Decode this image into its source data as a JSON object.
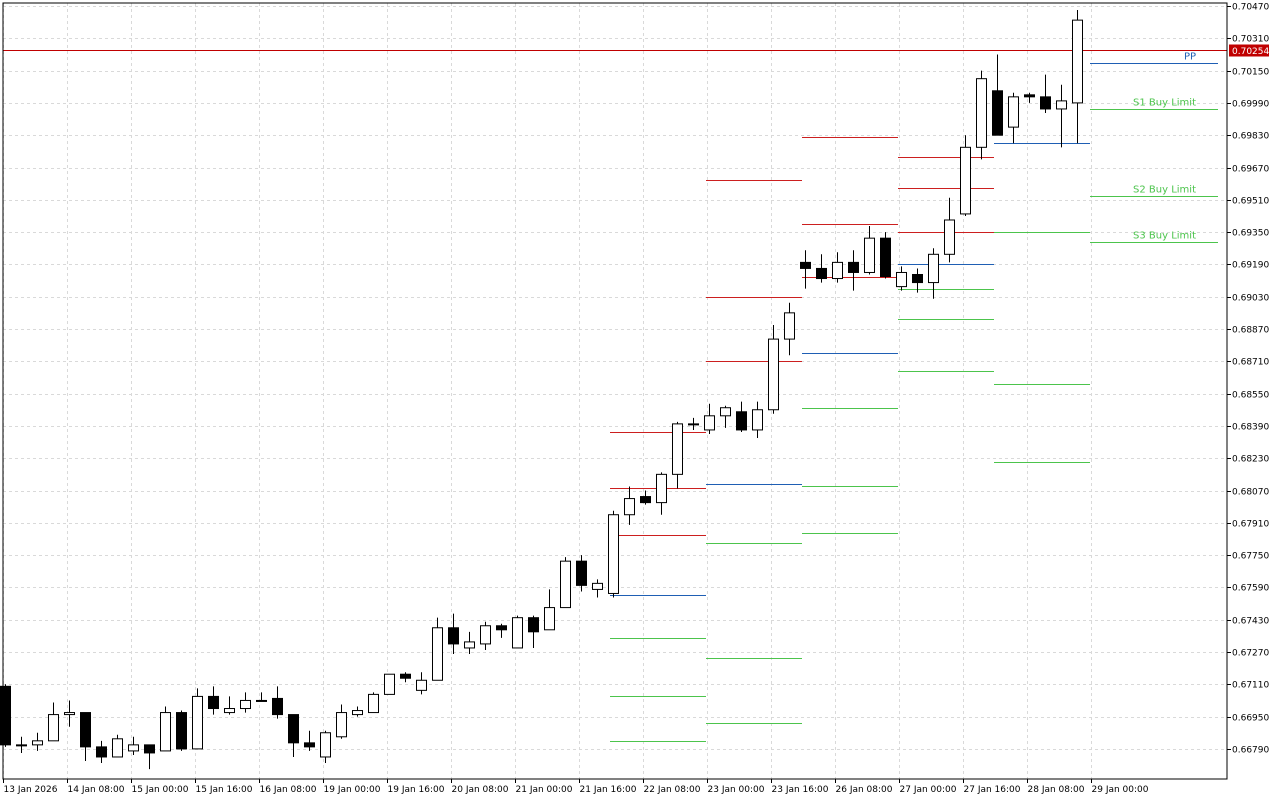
{
  "chart_data": {
    "type": "candlestick",
    "grid": true,
    "ylim": [
      0.6668,
      0.7047
    ],
    "current_price": {
      "value": 0.70254,
      "label": "0.70254",
      "color": "#c00000"
    },
    "y_ticks": [
      {
        "value": 0.7047,
        "label": "0.70470"
      },
      {
        "value": 0.7031,
        "label": "0.70310"
      },
      {
        "value": 0.7015,
        "label": "0.70150"
      },
      {
        "value": 0.6999,
        "label": "0.69990"
      },
      {
        "value": 0.6983,
        "label": "0.69830"
      },
      {
        "value": 0.6967,
        "label": "0.69670"
      },
      {
        "value": 0.6951,
        "label": "0.69510"
      },
      {
        "value": 0.6935,
        "label": "0.69350"
      },
      {
        "value": 0.6919,
        "label": "0.69190"
      },
      {
        "value": 0.6903,
        "label": "0.69030"
      },
      {
        "value": 0.6887,
        "label": "0.68870"
      },
      {
        "value": 0.6871,
        "label": "0.68710"
      },
      {
        "value": 0.6855,
        "label": "0.68550"
      },
      {
        "value": 0.6839,
        "label": "0.68390"
      },
      {
        "value": 0.6823,
        "label": "0.68230"
      },
      {
        "value": 0.6807,
        "label": "0.68070"
      },
      {
        "value": 0.6791,
        "label": "0.67910"
      },
      {
        "value": 0.6775,
        "label": "0.67750"
      },
      {
        "value": 0.6759,
        "label": "0.67590"
      },
      {
        "value": 0.6743,
        "label": "0.67430"
      },
      {
        "value": 0.6727,
        "label": "0.67270"
      },
      {
        "value": 0.6711,
        "label": "0.67110"
      },
      {
        "value": 0.6695,
        "label": "0.66950"
      },
      {
        "value": 0.6679,
        "label": "0.66790"
      }
    ],
    "x_ticks": [
      {
        "index": 0,
        "label": "13 Jan 2026"
      },
      {
        "index": 4,
        "label": "14 Jan 08:00"
      },
      {
        "index": 8,
        "label": "15 Jan 00:00"
      },
      {
        "index": 12,
        "label": "15 Jan 16:00"
      },
      {
        "index": 16,
        "label": "16 Jan 08:00"
      },
      {
        "index": 20,
        "label": "19 Jan 00:00"
      },
      {
        "index": 24,
        "label": "19 Jan 16:00"
      },
      {
        "index": 28,
        "label": "20 Jan 08:00"
      },
      {
        "index": 32,
        "label": "21 Jan 00:00"
      },
      {
        "index": 36,
        "label": "21 Jan 16:00"
      },
      {
        "index": 40,
        "label": "22 Jan 08:00"
      },
      {
        "index": 44,
        "label": "23 Jan 00:00"
      },
      {
        "index": 48,
        "label": "23 Jan 16:00"
      },
      {
        "index": 52,
        "label": "26 Jan 08:00"
      },
      {
        "index": 56,
        "label": "27 Jan 00:00"
      },
      {
        "index": 60,
        "label": "27 Jan 16:00"
      },
      {
        "index": 64,
        "label": "28 Jan 08:00"
      },
      {
        "index": 68,
        "label": "29 Jan 00:00"
      }
    ],
    "candles": [
      {
        "i": 0,
        "o": 0.671,
        "h": 0.6711,
        "l": 0.668,
        "c": 0.6681
      },
      {
        "i": 1,
        "o": 0.6681,
        "h": 0.6685,
        "l": 0.6677,
        "c": 0.6681
      },
      {
        "i": 2,
        "o": 0.6681,
        "h": 0.6687,
        "l": 0.6678,
        "c": 0.6683
      },
      {
        "i": 3,
        "o": 0.6683,
        "h": 0.6702,
        "l": 0.6683,
        "c": 0.6696
      },
      {
        "i": 4,
        "o": 0.6696,
        "h": 0.6703,
        "l": 0.669,
        "c": 0.6697
      },
      {
        "i": 5,
        "o": 0.6697,
        "h": 0.6697,
        "l": 0.6673,
        "c": 0.668
      },
      {
        "i": 6,
        "o": 0.668,
        "h": 0.6683,
        "l": 0.6672,
        "c": 0.6675
      },
      {
        "i": 7,
        "o": 0.6675,
        "h": 0.6686,
        "l": 0.6675,
        "c": 0.6684
      },
      {
        "i": 8,
        "o": 0.6678,
        "h": 0.6685,
        "l": 0.6676,
        "c": 0.6681
      },
      {
        "i": 9,
        "o": 0.6681,
        "h": 0.6681,
        "l": 0.6669,
        "c": 0.6677
      },
      {
        "i": 10,
        "o": 0.6678,
        "h": 0.67,
        "l": 0.6678,
        "c": 0.6697
      },
      {
        "i": 11,
        "o": 0.6697,
        "h": 0.6698,
        "l": 0.6678,
        "c": 0.6679
      },
      {
        "i": 12,
        "o": 0.6679,
        "h": 0.6709,
        "l": 0.6679,
        "c": 0.6705
      },
      {
        "i": 13,
        "o": 0.6705,
        "h": 0.671,
        "l": 0.6696,
        "c": 0.6699
      },
      {
        "i": 14,
        "o": 0.6697,
        "h": 0.6705,
        "l": 0.6696,
        "c": 0.6699
      },
      {
        "i": 15,
        "o": 0.6699,
        "h": 0.6707,
        "l": 0.6697,
        "c": 0.6703
      },
      {
        "i": 16,
        "o": 0.6703,
        "h": 0.6707,
        "l": 0.6703,
        "c": 0.6703
      },
      {
        "i": 17,
        "o": 0.6704,
        "h": 0.671,
        "l": 0.6694,
        "c": 0.6696
      },
      {
        "i": 18,
        "o": 0.6696,
        "h": 0.6696,
        "l": 0.6675,
        "c": 0.6682
      },
      {
        "i": 19,
        "o": 0.6682,
        "h": 0.6688,
        "l": 0.6678,
        "c": 0.668
      },
      {
        "i": 20,
        "o": 0.6675,
        "h": 0.6688,
        "l": 0.6672,
        "c": 0.6687
      },
      {
        "i": 21,
        "o": 0.6685,
        "h": 0.6701,
        "l": 0.6684,
        "c": 0.6697
      },
      {
        "i": 22,
        "o": 0.6696,
        "h": 0.67,
        "l": 0.6695,
        "c": 0.6698
      },
      {
        "i": 23,
        "o": 0.6697,
        "h": 0.6707,
        "l": 0.6697,
        "c": 0.6706
      },
      {
        "i": 24,
        "o": 0.6706,
        "h": 0.6716,
        "l": 0.6706,
        "c": 0.6716
      },
      {
        "i": 25,
        "o": 0.6716,
        "h": 0.6717,
        "l": 0.6712,
        "c": 0.6714
      },
      {
        "i": 26,
        "o": 0.6708,
        "h": 0.6717,
        "l": 0.6706,
        "c": 0.6713
      },
      {
        "i": 27,
        "o": 0.6713,
        "h": 0.6744,
        "l": 0.6713,
        "c": 0.6739
      },
      {
        "i": 28,
        "o": 0.6739,
        "h": 0.6746,
        "l": 0.6726,
        "c": 0.6731
      },
      {
        "i": 29,
        "o": 0.6729,
        "h": 0.6737,
        "l": 0.6726,
        "c": 0.6732
      },
      {
        "i": 30,
        "o": 0.6731,
        "h": 0.6742,
        "l": 0.6728,
        "c": 0.674
      },
      {
        "i": 31,
        "o": 0.674,
        "h": 0.6741,
        "l": 0.6734,
        "c": 0.6738
      },
      {
        "i": 32,
        "o": 0.6729,
        "h": 0.6745,
        "l": 0.6729,
        "c": 0.6744
      },
      {
        "i": 33,
        "o": 0.6744,
        "h": 0.6745,
        "l": 0.6729,
        "c": 0.6737
      },
      {
        "i": 34,
        "o": 0.6738,
        "h": 0.6758,
        "l": 0.6738,
        "c": 0.6749
      },
      {
        "i": 35,
        "o": 0.6749,
        "h": 0.6774,
        "l": 0.6749,
        "c": 0.6772
      },
      {
        "i": 36,
        "o": 0.6772,
        "h": 0.6775,
        "l": 0.6757,
        "c": 0.676
      },
      {
        "i": 37,
        "o": 0.6758,
        "h": 0.6763,
        "l": 0.6754,
        "c": 0.6761
      },
      {
        "i": 38,
        "o": 0.6756,
        "h": 0.6797,
        "l": 0.6754,
        "c": 0.6795
      },
      {
        "i": 39,
        "o": 0.6795,
        "h": 0.6809,
        "l": 0.679,
        "c": 0.6803
      },
      {
        "i": 40,
        "o": 0.6804,
        "h": 0.6807,
        "l": 0.68,
        "c": 0.6801
      },
      {
        "i": 41,
        "o": 0.6801,
        "h": 0.6816,
        "l": 0.6795,
        "c": 0.6815
      },
      {
        "i": 42,
        "o": 0.6815,
        "h": 0.6841,
        "l": 0.6808,
        "c": 0.684
      },
      {
        "i": 43,
        "o": 0.684,
        "h": 0.6843,
        "l": 0.6837,
        "c": 0.684
      },
      {
        "i": 44,
        "o": 0.6837,
        "h": 0.685,
        "l": 0.6835,
        "c": 0.6844
      },
      {
        "i": 45,
        "o": 0.6844,
        "h": 0.6849,
        "l": 0.6838,
        "c": 0.6848
      },
      {
        "i": 46,
        "o": 0.6846,
        "h": 0.6851,
        "l": 0.6836,
        "c": 0.6837
      },
      {
        "i": 47,
        "o": 0.6837,
        "h": 0.6851,
        "l": 0.6833,
        "c": 0.6847
      },
      {
        "i": 48,
        "o": 0.6847,
        "h": 0.6889,
        "l": 0.6845,
        "c": 0.6882
      },
      {
        "i": 49,
        "o": 0.6882,
        "h": 0.69,
        "l": 0.6874,
        "c": 0.6895
      },
      {
        "i": 50,
        "o": 0.692,
        "h": 0.6926,
        "l": 0.6907,
        "c": 0.6917
      },
      {
        "i": 51,
        "o": 0.6917,
        "h": 0.6924,
        "l": 0.691,
        "c": 0.6912
      },
      {
        "i": 52,
        "o": 0.6912,
        "h": 0.6925,
        "l": 0.691,
        "c": 0.692
      },
      {
        "i": 53,
        "o": 0.692,
        "h": 0.6926,
        "l": 0.6906,
        "c": 0.6915
      },
      {
        "i": 54,
        "o": 0.6915,
        "h": 0.6938,
        "l": 0.6914,
        "c": 0.6932
      },
      {
        "i": 55,
        "o": 0.6932,
        "h": 0.6935,
        "l": 0.6912,
        "c": 0.6913
      },
      {
        "i": 56,
        "o": 0.6908,
        "h": 0.6918,
        "l": 0.6906,
        "c": 0.6915
      },
      {
        "i": 57,
        "o": 0.6914,
        "h": 0.6917,
        "l": 0.6905,
        "c": 0.691
      },
      {
        "i": 58,
        "o": 0.691,
        "h": 0.6927,
        "l": 0.6902,
        "c": 0.6924
      },
      {
        "i": 59,
        "o": 0.6924,
        "h": 0.6952,
        "l": 0.692,
        "c": 0.6941
      },
      {
        "i": 60,
        "o": 0.6944,
        "h": 0.6983,
        "l": 0.6943,
        "c": 0.6977
      },
      {
        "i": 61,
        "o": 0.6977,
        "h": 0.7015,
        "l": 0.6971,
        "c": 0.7011
      },
      {
        "i": 62,
        "o": 0.7005,
        "h": 0.7023,
        "l": 0.6985,
        "c": 0.6983
      },
      {
        "i": 63,
        "o": 0.6987,
        "h": 0.7004,
        "l": 0.6979,
        "c": 0.7002
      },
      {
        "i": 64,
        "o": 0.7003,
        "h": 0.7004,
        "l": 0.6999,
        "c": 0.7002
      },
      {
        "i": 65,
        "o": 0.7002,
        "h": 0.7013,
        "l": 0.6994,
        "c": 0.6996
      },
      {
        "i": 66,
        "o": 0.6996,
        "h": 0.7008,
        "l": 0.6977,
        "c": 0.7
      },
      {
        "i": 67,
        "o": 0.6999,
        "h": 0.7045,
        "l": 0.6979,
        "c": 0.704
      }
    ],
    "pivot_segments": [
      {
        "start": 38,
        "end": 43,
        "r": [
          0.6836,
          0.6808,
          0.6785
        ],
        "p": 0.6755,
        "s": [
          0.6734,
          0.6705,
          0.6683
        ]
      },
      {
        "start": 44,
        "end": 49,
        "r": [
          0.6961,
          0.6903,
          0.6871
        ],
        "p": 0.681,
        "s": [
          0.6781,
          0.6724,
          0.6692
        ]
      },
      {
        "start": 50,
        "end": 55,
        "r": [
          0.6982,
          0.6939,
          0.6913
        ],
        "p": 0.6875,
        "s": [
          0.6848,
          0.6809,
          0.6786
        ]
      },
      {
        "start": 56,
        "end": 61,
        "r": [
          0.6972,
          0.6957,
          0.6935
        ],
        "p": 0.6919,
        "s": [
          0.6907,
          0.6892,
          0.6866
        ]
      },
      {
        "start": 62,
        "end": 67,
        "r": [],
        "p": 0.6979,
        "s": [
          0.6935,
          0.686,
          0.6821
        ]
      }
    ],
    "future_levels": [
      {
        "label": "PP",
        "value": 0.7019,
        "color": "#1f5fb4"
      },
      {
        "label": "S1 Buy Limit",
        "value": 0.6996,
        "color": "#4cc44c"
      },
      {
        "label": "S2 Buy Limit",
        "value": 0.6953,
        "color": "#4cc44c"
      },
      {
        "label": "S3 Buy Limit",
        "value": 0.693,
        "color": "#4cc44c"
      }
    ],
    "colors": {
      "resistance": "#cc1f1f",
      "pivot": "#1f5fb4",
      "support": "#4cc44c",
      "grid": "#d9d9d9",
      "candle_bull_fill": "#ffffff",
      "candle_bear_fill": "#000000",
      "candle_outline": "#000000"
    }
  }
}
